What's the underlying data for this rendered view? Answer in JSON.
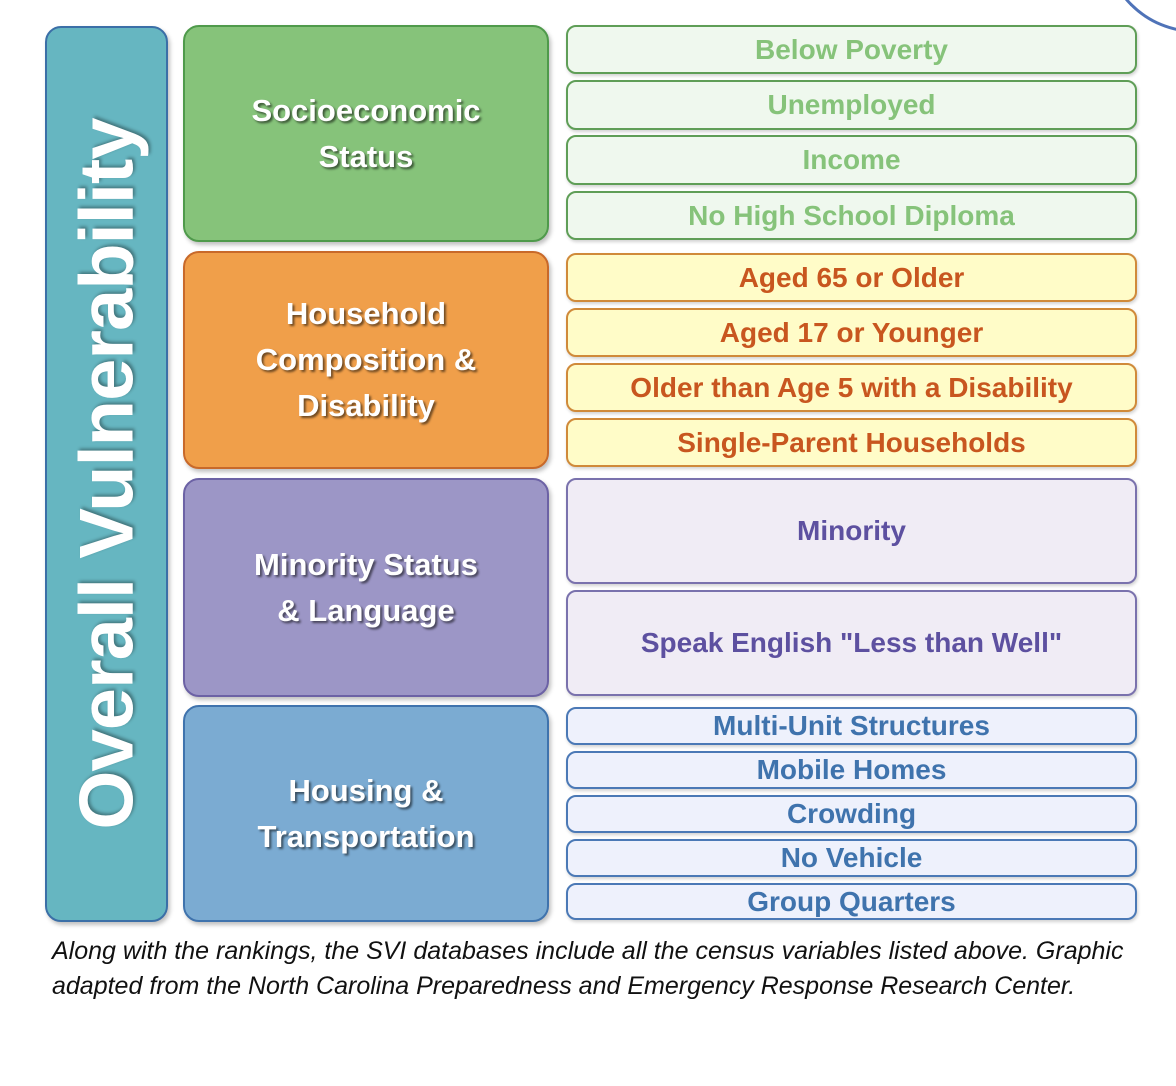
{
  "overall": {
    "label": "Overall Vulnerability",
    "color": "#66b6c1"
  },
  "themes": [
    {
      "label": "Socioeconomic\nStatus",
      "color": "#86c37a"
    },
    {
      "label": "Household\nComposition &\nDisability",
      "color": "#f09f4a"
    },
    {
      "label": "Minority Status\n& Language",
      "color": "#9c96c6"
    },
    {
      "label": "Housing &\nTransportation",
      "color": "#7babd2"
    }
  ],
  "variables": {
    "socioeconomic": [
      "Below Poverty",
      "Unemployed",
      "Income",
      "No High School Diploma"
    ],
    "household": [
      "Aged 65 or Older",
      "Aged 17 or Younger",
      "Older than Age 5 with a Disability",
      "Single-Parent Households"
    ],
    "minority": [
      "Minority",
      "Speak English \"Less than Well\""
    ],
    "housing": [
      "Multi-Unit Structures",
      "Mobile Homes",
      "Crowding",
      "No Vehicle",
      "Group Quarters"
    ]
  },
  "caption": "Along with the rankings, the SVI databases include all the census variables listed above. Graphic adapted from the North Carolina Preparedness and Emergency Response Research Center."
}
